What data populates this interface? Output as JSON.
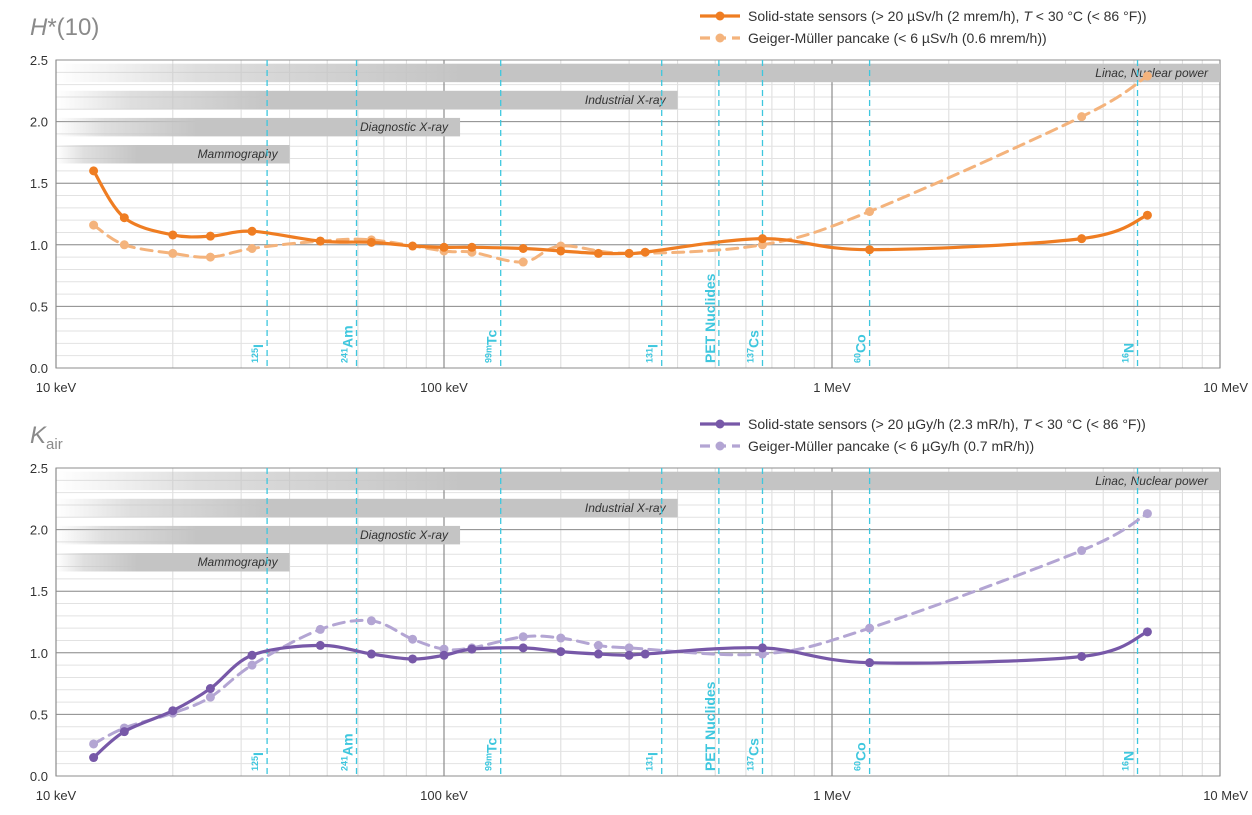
{
  "colors": {
    "dose_solid": "#ef7d22",
    "dose_gm": "#f4b37c",
    "air_solid": "#7758a8",
    "air_gm": "#b3a5d3",
    "nuclide": "#3ec7de",
    "band": "#c4c4c4"
  },
  "chart_data": [
    {
      "type": "line",
      "quantity_symbol": "H",
      "quantity_suffix": "*(10)",
      "quantity_sub": "",
      "x_scale": "log",
      "x_unit": "keV",
      "xlim": [
        10,
        10000
      ],
      "ylim": [
        0,
        2.5
      ],
      "x_tick_labels": [
        {
          "value": 10,
          "label": "10 keV"
        },
        {
          "value": 100,
          "label": "100 keV"
        },
        {
          "value": 1000,
          "label": "1 MeV"
        },
        {
          "value": 10000,
          "label": "10 MeV"
        }
      ],
      "y_ticks": [
        {
          "value": 0,
          "label": "0.0"
        },
        {
          "value": 0.5,
          "label": "0.5"
        },
        {
          "value": 1,
          "label": "1.0"
        },
        {
          "value": 1.5,
          "label": "1.5"
        },
        {
          "value": 2,
          "label": "2.0"
        },
        {
          "value": 2.5,
          "label": "2.5"
        }
      ],
      "grid": true,
      "legend_position": "top-right",
      "series": [
        {
          "key": "solid",
          "legend": {
            "pre": "Solid-state sensors (> 20 µSv/h (2 mrem/h), ",
            "italic": "T",
            "post": " < 30 °C (< 86 °F))"
          },
          "style": "solid",
          "color_key": "dose_solid",
          "x": [
            12.5,
            15,
            20,
            25,
            32,
            48,
            65,
            83,
            100,
            118,
            160,
            200,
            250,
            300,
            330,
            662,
            1250,
            4400,
            6500
          ],
          "y": [
            1.6,
            1.22,
            1.08,
            1.07,
            1.11,
            1.03,
            1.02,
            0.99,
            0.98,
            0.98,
            0.97,
            0.95,
            0.93,
            0.93,
            0.94,
            1.05,
            0.96,
            1.05,
            1.24
          ]
        },
        {
          "key": "gm",
          "legend": {
            "pre": "Geiger-Müller pancake (< 6 µSv/h (0.6 mrem/h))",
            "italic": "",
            "post": ""
          },
          "style": "dashed",
          "color_key": "dose_gm",
          "x": [
            12.5,
            15,
            20,
            25,
            32,
            48,
            65,
            100,
            118,
            160,
            200,
            300,
            662,
            1250,
            4400,
            6500
          ],
          "y": [
            1.16,
            1.0,
            0.93,
            0.9,
            0.97,
            1.03,
            1.04,
            0.95,
            0.94,
            0.86,
            0.99,
            0.93,
            1.0,
            1.27,
            2.04,
            2.37
          ]
        }
      ],
      "bands": [
        {
          "label": "Linac, Nuclear power",
          "y_top": 2.47,
          "y_bottom": 2.32,
          "x_end": 10000
        },
        {
          "label": "Industrial X-ray",
          "y_top": 2.25,
          "y_bottom": 2.1,
          "x_end": 400
        },
        {
          "label": "Diagnostic X-ray",
          "y_top": 2.03,
          "y_bottom": 1.88,
          "x_end": 110
        },
        {
          "label": "Mammography",
          "y_top": 1.81,
          "y_bottom": 1.66,
          "x_end": 40
        }
      ],
      "nuclides": [
        {
          "energy": 35,
          "sup": "125",
          "symbol": "I"
        },
        {
          "energy": 59.5,
          "sup": "241",
          "symbol": "Am"
        },
        {
          "energy": 140,
          "sup": "99m",
          "symbol": "Tc"
        },
        {
          "energy": 364,
          "sup": "131",
          "symbol": "I"
        },
        {
          "energy": 511,
          "sup": "",
          "symbol": "PET Nuclides"
        },
        {
          "energy": 662,
          "sup": "137",
          "symbol": "Cs"
        },
        {
          "energy": 1250,
          "sup": "60",
          "symbol": "Co"
        },
        {
          "energy": 6130,
          "sup": "16",
          "symbol": "N"
        }
      ]
    },
    {
      "type": "line",
      "quantity_symbol": "K",
      "quantity_suffix": "",
      "quantity_sub": "air",
      "x_scale": "log",
      "x_unit": "keV",
      "xlim": [
        10,
        10000
      ],
      "ylim": [
        0,
        2.5
      ],
      "x_tick_labels": [
        {
          "value": 10,
          "label": "10 keV"
        },
        {
          "value": 100,
          "label": "100 keV"
        },
        {
          "value": 1000,
          "label": "1 MeV"
        },
        {
          "value": 10000,
          "label": "10 MeV"
        }
      ],
      "y_ticks": [
        {
          "value": 0,
          "label": "0.0"
        },
        {
          "value": 0.5,
          "label": "0.5"
        },
        {
          "value": 1,
          "label": "1.0"
        },
        {
          "value": 1.5,
          "label": "1.5"
        },
        {
          "value": 2,
          "label": "2.0"
        },
        {
          "value": 2.5,
          "label": "2.5"
        }
      ],
      "grid": true,
      "legend_position": "top-right",
      "series": [
        {
          "key": "solid",
          "legend": {
            "pre": "Solid-state sensors (> 20 µGy/h (2.3 mR/h), ",
            "italic": "T",
            "post": " < 30 °C (< 86 °F))"
          },
          "style": "solid",
          "color_key": "air_solid",
          "x": [
            12.5,
            15,
            20,
            25,
            32,
            48,
            65,
            83,
            100,
            118,
            160,
            200,
            250,
            300,
            330,
            662,
            1250,
            4400,
            6500
          ],
          "y": [
            0.15,
            0.36,
            0.53,
            0.71,
            0.98,
            1.06,
            0.99,
            0.95,
            0.98,
            1.03,
            1.04,
            1.01,
            0.99,
            0.98,
            0.99,
            1.04,
            0.92,
            0.97,
            1.17
          ]
        },
        {
          "key": "gm",
          "legend": {
            "pre": "Geiger-Müller pancake (< 6 µGy/h (0.7 mR/h))",
            "italic": "",
            "post": ""
          },
          "style": "dashed",
          "color_key": "air_gm",
          "x": [
            12.5,
            15,
            20,
            25,
            32,
            48,
            65,
            83,
            100,
            118,
            160,
            200,
            250,
            300,
            662,
            1250,
            4400,
            6500
          ],
          "y": [
            0.26,
            0.39,
            0.51,
            0.64,
            0.9,
            1.19,
            1.26,
            1.11,
            1.03,
            1.04,
            1.13,
            1.12,
            1.06,
            1.04,
            0.99,
            1.2,
            1.83,
            2.13
          ]
        }
      ],
      "bands": [
        {
          "label": "Linac, Nuclear power",
          "y_top": 2.47,
          "y_bottom": 2.32,
          "x_end": 10000
        },
        {
          "label": "Industrial X-ray",
          "y_top": 2.25,
          "y_bottom": 2.1,
          "x_end": 400
        },
        {
          "label": "Diagnostic X-ray",
          "y_top": 2.03,
          "y_bottom": 1.88,
          "x_end": 110
        },
        {
          "label": "Mammography",
          "y_top": 1.81,
          "y_bottom": 1.66,
          "x_end": 40
        }
      ],
      "nuclides": [
        {
          "energy": 35,
          "sup": "125",
          "symbol": "I"
        },
        {
          "energy": 59.5,
          "sup": "241",
          "symbol": "Am"
        },
        {
          "energy": 140,
          "sup": "99m",
          "symbol": "Tc"
        },
        {
          "energy": 364,
          "sup": "131",
          "symbol": "I"
        },
        {
          "energy": 511,
          "sup": "",
          "symbol": "PET Nuclides"
        },
        {
          "energy": 662,
          "sup": "137",
          "symbol": "Cs"
        },
        {
          "energy": 1250,
          "sup": "60",
          "symbol": "Co"
        },
        {
          "energy": 6130,
          "sup": "16",
          "symbol": "N"
        }
      ]
    }
  ]
}
